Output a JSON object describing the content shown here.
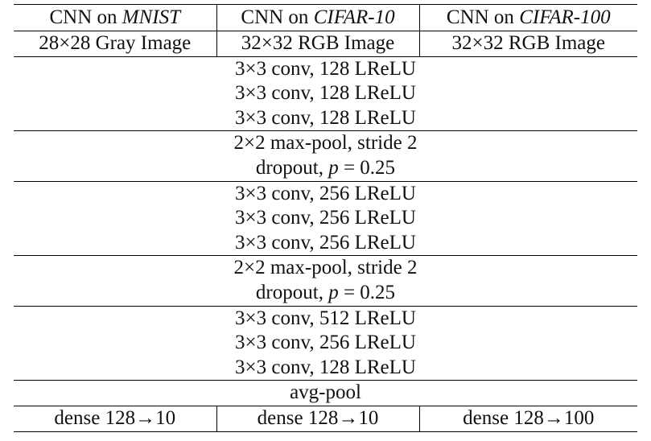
{
  "header": {
    "columns": [
      {
        "prefix": "CNN on ",
        "dataset": "MNIST"
      },
      {
        "prefix": "CNN on ",
        "dataset": "CIFAR-10"
      },
      {
        "prefix": "CNN on ",
        "dataset": "CIFAR-100"
      }
    ]
  },
  "inputs": [
    "28×28 Gray Image",
    "32×32 RGB Image",
    "32×32 RGB Image"
  ],
  "blocks": [
    [
      "3×3 conv, 128 LReLU",
      "3×3 conv, 128 LReLU",
      "3×3 conv, 128 LReLU"
    ],
    [
      "2×2 max-pool, stride 2"
    ],
    [
      "3×3 conv, 256 LReLU",
      "3×3 conv, 256 LReLU",
      "3×3 conv, 256 LReLU"
    ],
    [
      "2×2 max-pool, stride 2"
    ],
    [
      "3×3 conv, 512 LReLU",
      "3×3 conv, 256 LReLU",
      "3×3 conv, 128 LReLU"
    ],
    [
      "avg-pool"
    ]
  ],
  "dropout": {
    "prefix": "dropout, ",
    "var": "p",
    "rest": " = 0.25"
  },
  "outputs": [
    "dense 128→10",
    "dense 128→10",
    "dense 128→100"
  ]
}
